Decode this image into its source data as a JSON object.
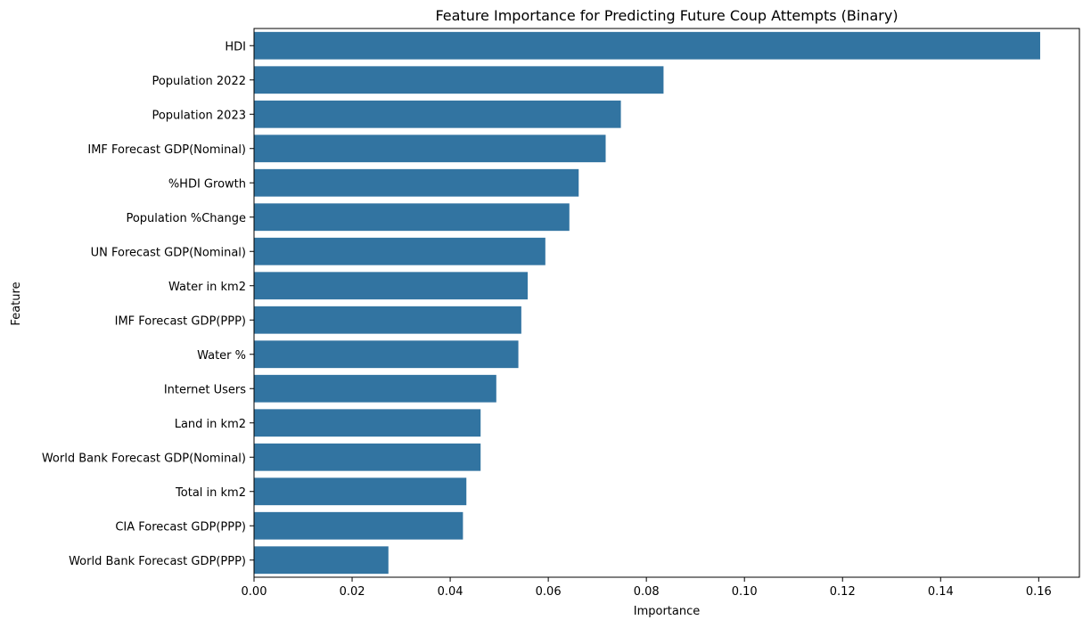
{
  "chart_data": {
    "type": "bar",
    "orientation": "horizontal",
    "title": "Feature Importance for Predicting Future Coup Attempts (Binary)",
    "xlabel": "Importance",
    "ylabel": "Feature",
    "xlim": [
      0,
      0.1683
    ],
    "xticks": [
      "0.00",
      "0.02",
      "0.04",
      "0.06",
      "0.08",
      "0.10",
      "0.12",
      "0.14",
      "0.16"
    ],
    "grid": false,
    "bar_color": "#3274a1",
    "categories": [
      "HDI",
      "Population 2022",
      "Population 2023",
      "IMF Forecast GDP(Nominal)",
      "%HDI Growth",
      "Population %Change",
      "UN Forecast GDP(Nominal)",
      "Water in km2",
      "IMF Forecast GDP(PPP)",
      "Water %",
      "Internet Users",
      "Land in km2",
      "World Bank Forecast GDP(Nominal)",
      "Total in km2",
      "CIA Forecast GDP(PPP)",
      "World Bank Forecast GDP(PPP)"
    ],
    "values": [
      0.1603,
      0.0835,
      0.0748,
      0.0717,
      0.0662,
      0.0643,
      0.0594,
      0.0558,
      0.0545,
      0.0539,
      0.0494,
      0.0462,
      0.0462,
      0.0433,
      0.0426,
      0.0274
    ]
  }
}
